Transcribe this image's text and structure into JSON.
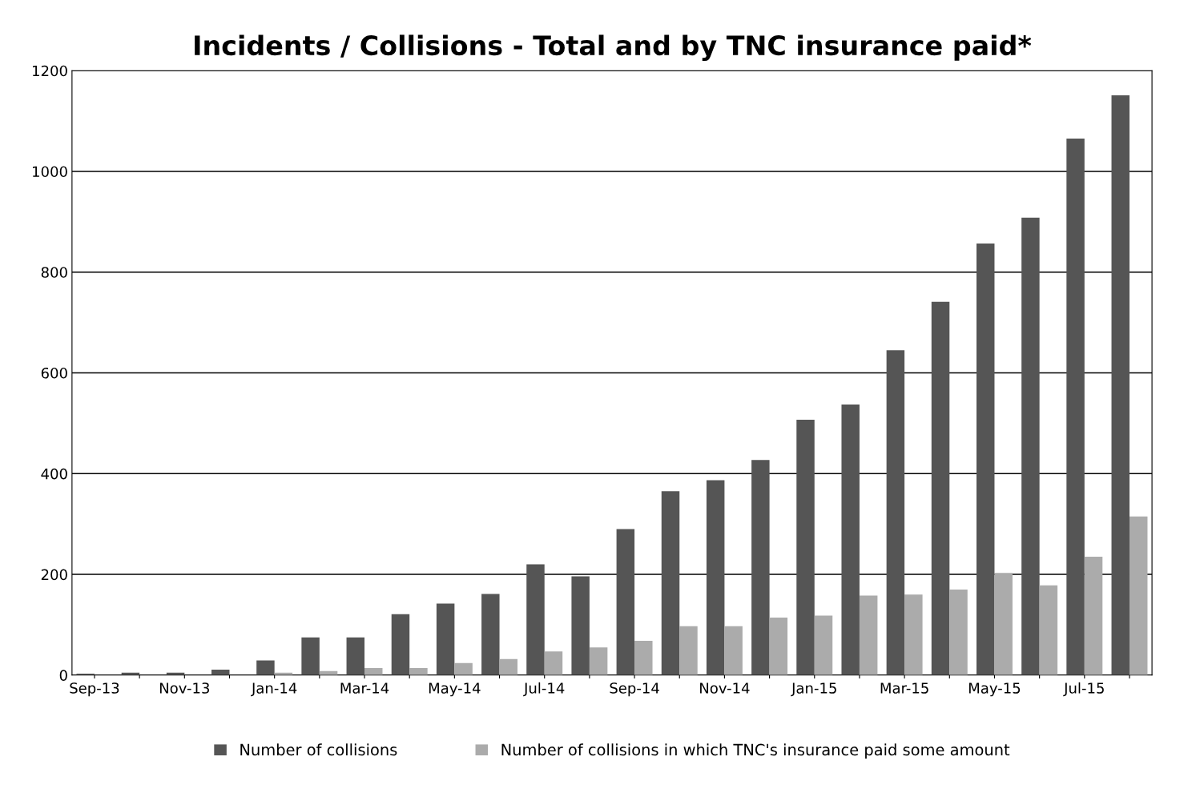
{
  "chart_data": {
    "type": "bar",
    "title": "Incidents / Collisions - Total and by TNC insurance paid*",
    "categories": [
      "Sep-13",
      null,
      "Nov-13",
      null,
      "Jan-14",
      null,
      "Mar-14",
      null,
      "May-14",
      null,
      "Jul-14",
      null,
      "Sep-14",
      null,
      "Nov-14",
      null,
      "Jan-15",
      null,
      "Mar-15",
      null,
      "May-15",
      null,
      "Jul-15",
      null
    ],
    "series": [
      {
        "name": "Number of collisions",
        "color": "#555555",
        "values": [
          3,
          5,
          5,
          11,
          29,
          75,
          75,
          121,
          142,
          161,
          220,
          196,
          290,
          365,
          387,
          427,
          507,
          537,
          645,
          741,
          857,
          908,
          1065,
          1151
        ]
      },
      {
        "name": "Number of collisions in which TNC's insurance paid some amount",
        "color": "#ababab",
        "values": [
          0,
          null,
          null,
          null,
          5,
          8,
          14,
          14,
          24,
          32,
          47,
          55,
          68,
          97,
          97,
          114,
          118,
          158,
          160,
          170,
          203,
          178,
          235,
          315
        ]
      }
    ],
    "ylim": [
      0,
      1200
    ],
    "yticks": [
      0,
      200,
      400,
      600,
      800,
      1000,
      1200
    ],
    "grid": "y",
    "legend": "bottom"
  }
}
